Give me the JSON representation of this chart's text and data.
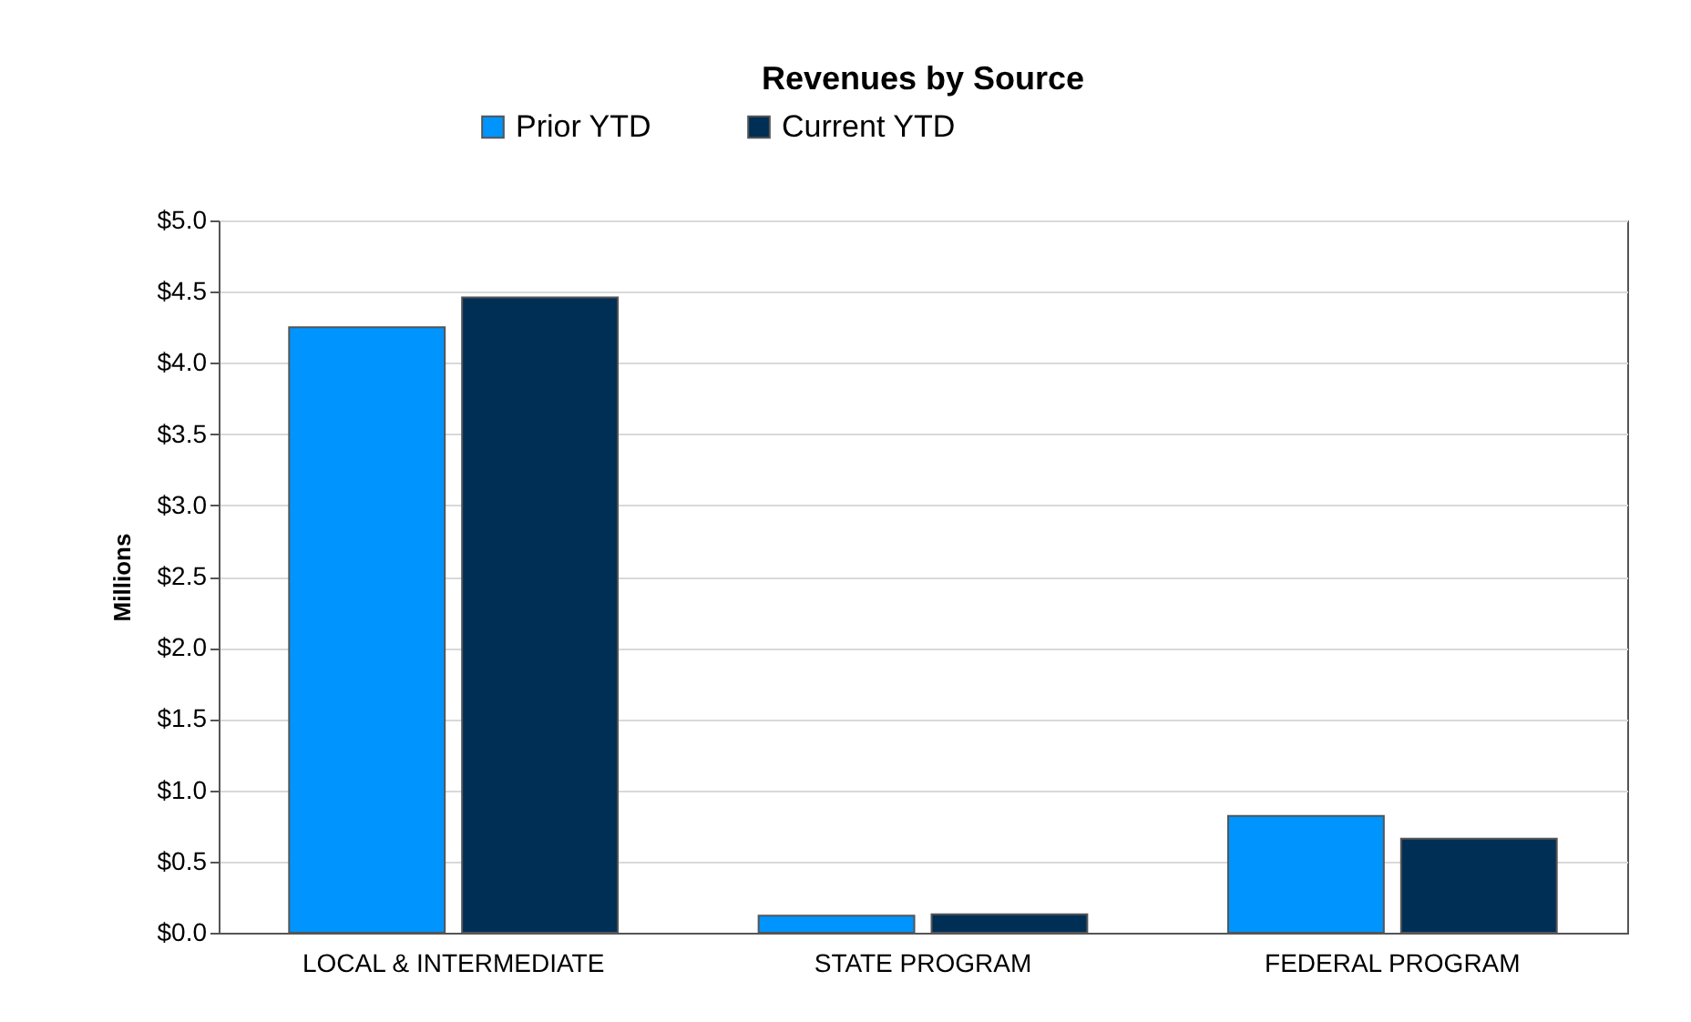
{
  "chart_data": {
    "type": "bar",
    "title": "Revenues by Source",
    "ylabel": "Millions",
    "categories": [
      "LOCAL & INTERMEDIATE",
      "STATE PROGRAM",
      "FEDERAL PROGRAM"
    ],
    "series": [
      {
        "name": "Prior YTD",
        "color": "#0094ff",
        "values": [
          4.25,
          0.12,
          0.82
        ]
      },
      {
        "name": "Current YTD",
        "color": "#002f56",
        "values": [
          4.46,
          0.13,
          0.66
        ]
      }
    ],
    "ylim": [
      0,
      5
    ],
    "yticks": [
      {
        "value": 0,
        "label": "$0.0"
      },
      {
        "value": 0.5,
        "label": "$0.5"
      },
      {
        "value": 1,
        "label": "$1.0"
      },
      {
        "value": 1.5,
        "label": "$1.5"
      },
      {
        "value": 2,
        "label": "$2.0"
      },
      {
        "value": 2.5,
        "label": "$2.5"
      },
      {
        "value": 3,
        "label": "$3.0"
      },
      {
        "value": 3.5,
        "label": "$3.5"
      },
      {
        "value": 4,
        "label": "$4.0"
      },
      {
        "value": 4.5,
        "label": "$4.5"
      },
      {
        "value": 5,
        "label": "$5.0"
      }
    ],
    "grid": "y",
    "legend": "top"
  }
}
